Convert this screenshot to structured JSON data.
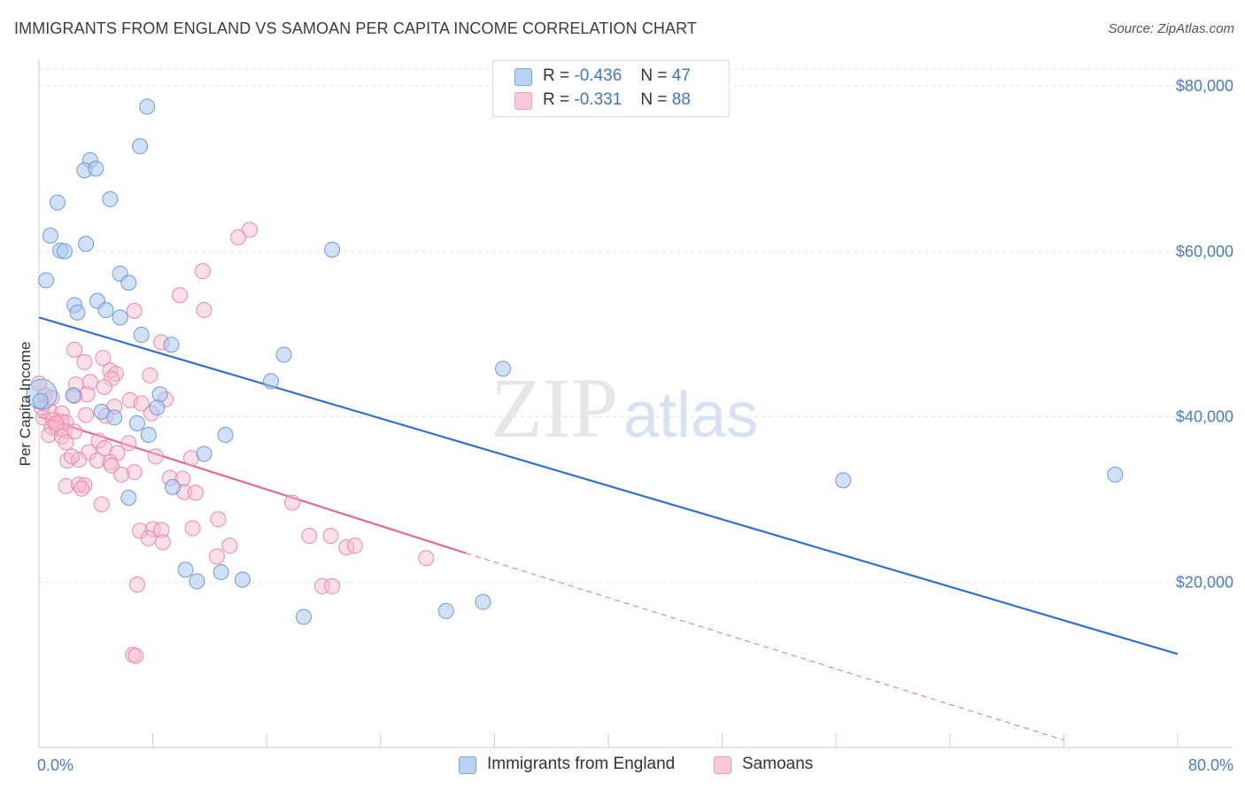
{
  "header": {
    "title": "IMMIGRANTS FROM ENGLAND VS SAMOAN PER CAPITA INCOME CORRELATION CHART",
    "source": "Source: ZipAtlas.com"
  },
  "watermark": {
    "main": "ZIP",
    "sub": "atlas"
  },
  "legend": {
    "rows": [
      {
        "r_label": "R =",
        "r_value": "-0.436",
        "n_label": "N =",
        "n_value": "47"
      },
      {
        "r_label": "R =",
        "r_value": "-0.331",
        "n_label": "N =",
        "n_value": "88"
      }
    ]
  },
  "bottom_legend": [
    "Immigrants from England",
    "Samoans"
  ],
  "colors": {
    "england_fill": "#a9c7ee",
    "england_stroke": "#6f9ad6",
    "england_line": "#3370cc",
    "samoan_fill": "#f6b9cc",
    "samoan_stroke": "#e98aa8",
    "samoan_line": "#e46a94",
    "grid": "#e2e2e2",
    "axis": "#cccccc",
    "tick_text": "#4a7cc4"
  },
  "chart_data": {
    "type": "scatter",
    "title": "IMMIGRANTS FROM ENGLAND VS SAMOAN PER CAPITA INCOME CORRELATION CHART",
    "xlabel": "",
    "ylabel": "Per Capita Income",
    "xlim": [
      0,
      80
    ],
    "ylim": [
      0,
      82000
    ],
    "x_tick_labels": [
      "0.0%",
      "80.0%"
    ],
    "y_ticks": [
      20000,
      40000,
      60000,
      80000
    ],
    "y_tick_labels": [
      "$20,000",
      "$40,000",
      "$60,000",
      "$80,000"
    ],
    "grid": true,
    "legend_position": "top-center",
    "series": [
      {
        "name": "Immigrants from England",
        "r": -0.436,
        "n": 47,
        "trend": {
          "x": [
            0,
            80
          ],
          "y": [
            52000,
            11300
          ]
        },
        "points": [
          [
            7.6,
            77500
          ],
          [
            7.1,
            72700
          ],
          [
            3.6,
            71000
          ],
          [
            3.2,
            69800
          ],
          [
            4.0,
            70000
          ],
          [
            1.3,
            65900
          ],
          [
            5.0,
            66300
          ],
          [
            0.8,
            61900
          ],
          [
            1.5,
            60100
          ],
          [
            1.8,
            60000
          ],
          [
            3.3,
            60900
          ],
          [
            0.5,
            56500
          ],
          [
            5.7,
            57300
          ],
          [
            6.3,
            56200
          ],
          [
            2.5,
            53500
          ],
          [
            2.7,
            52600
          ],
          [
            4.1,
            54000
          ],
          [
            4.7,
            52900
          ],
          [
            5.7,
            52000
          ],
          [
            7.2,
            49900
          ],
          [
            9.3,
            48700
          ],
          [
            17.2,
            47500
          ],
          [
            16.3,
            44300
          ],
          [
            2.4,
            42600
          ],
          [
            8.5,
            42700
          ],
          [
            8.3,
            41100
          ],
          [
            4.4,
            40600
          ],
          [
            5.3,
            39900
          ],
          [
            6.9,
            39200
          ],
          [
            7.7,
            37800
          ],
          [
            13.1,
            37800
          ],
          [
            11.6,
            35500
          ],
          [
            6.3,
            30200
          ],
          [
            9.4,
            31500
          ],
          [
            10.3,
            21500
          ],
          [
            11.1,
            20100
          ],
          [
            12.8,
            21200
          ],
          [
            14.3,
            20300
          ],
          [
            18.6,
            15800
          ],
          [
            28.6,
            16500
          ],
          [
            31.2,
            17600
          ],
          [
            32.6,
            45800
          ],
          [
            20.6,
            60200
          ],
          [
            56.5,
            32300
          ],
          [
            75.6,
            33000
          ],
          [
            0.2,
            42700
          ],
          [
            0.1,
            41900
          ]
        ]
      },
      {
        "name": "Samoans",
        "r": -0.331,
        "n": 88,
        "trend": {
          "x": [
            0,
            30
          ],
          "y": [
            40000,
            23500
          ]
        },
        "trend_extension": {
          "x": [
            30,
            72
          ],
          "y": [
            23500,
            900
          ]
        },
        "points": [
          [
            14.8,
            62600
          ],
          [
            14.0,
            61700
          ],
          [
            11.5,
            57600
          ],
          [
            9.9,
            54700
          ],
          [
            11.6,
            52900
          ],
          [
            6.7,
            52800
          ],
          [
            8.6,
            49000
          ],
          [
            2.5,
            48100
          ],
          [
            4.5,
            47100
          ],
          [
            3.2,
            46600
          ],
          [
            5.0,
            45600
          ],
          [
            7.8,
            45000
          ],
          [
            5.4,
            45200
          ],
          [
            5.1,
            44600
          ],
          [
            3.6,
            44200
          ],
          [
            2.6,
            43900
          ],
          [
            4.6,
            43600
          ],
          [
            3.4,
            42700
          ],
          [
            0.4,
            42600
          ],
          [
            0.9,
            42300
          ],
          [
            2.5,
            42500
          ],
          [
            6.4,
            42000
          ],
          [
            7.2,
            41600
          ],
          [
            8.9,
            42100
          ],
          [
            5.3,
            41200
          ],
          [
            0.8,
            40600
          ],
          [
            1.6,
            40400
          ],
          [
            3.3,
            40200
          ],
          [
            4.7,
            40100
          ],
          [
            0.3,
            39900
          ],
          [
            1.0,
            39600
          ],
          [
            1.6,
            39400
          ],
          [
            1.9,
            39300
          ],
          [
            0.9,
            38700
          ],
          [
            1.3,
            38600
          ],
          [
            1.8,
            38300
          ],
          [
            2.5,
            38200
          ],
          [
            0.7,
            37800
          ],
          [
            1.6,
            37600
          ],
          [
            1.9,
            36900
          ],
          [
            4.2,
            37100
          ],
          [
            4.6,
            36200
          ],
          [
            6.3,
            36800
          ],
          [
            3.5,
            35700
          ],
          [
            5.5,
            35600
          ],
          [
            8.2,
            35200
          ],
          [
            10.7,
            35000
          ],
          [
            2.0,
            34700
          ],
          [
            4.1,
            34700
          ],
          [
            5.0,
            34500
          ],
          [
            2.8,
            34800
          ],
          [
            5.1,
            34100
          ],
          [
            6.7,
            33300
          ],
          [
            5.8,
            33000
          ],
          [
            9.2,
            32600
          ],
          [
            10.1,
            32500
          ],
          [
            1.9,
            31600
          ],
          [
            2.8,
            31800
          ],
          [
            3.2,
            31700
          ],
          [
            3.0,
            31300
          ],
          [
            10.2,
            30900
          ],
          [
            11.0,
            30800
          ],
          [
            4.4,
            29400
          ],
          [
            17.8,
            29600
          ],
          [
            12.6,
            27600
          ],
          [
            7.1,
            26200
          ],
          [
            8.0,
            26400
          ],
          [
            8.6,
            26300
          ],
          [
            7.7,
            25300
          ],
          [
            10.8,
            26500
          ],
          [
            8.7,
            24800
          ],
          [
            19.0,
            25600
          ],
          [
            20.5,
            25600
          ],
          [
            21.6,
            24200
          ],
          [
            22.2,
            24400
          ],
          [
            13.4,
            24400
          ],
          [
            12.5,
            23100
          ],
          [
            27.2,
            22900
          ],
          [
            6.9,
            19700
          ],
          [
            19.9,
            19500
          ],
          [
            20.6,
            19500
          ],
          [
            6.6,
            11200
          ],
          [
            6.8,
            11100
          ],
          [
            0.0,
            44000
          ],
          [
            0.2,
            41100
          ],
          [
            1.2,
            39200
          ],
          [
            7.9,
            40400
          ],
          [
            2.3,
            35200
          ]
        ]
      }
    ]
  }
}
